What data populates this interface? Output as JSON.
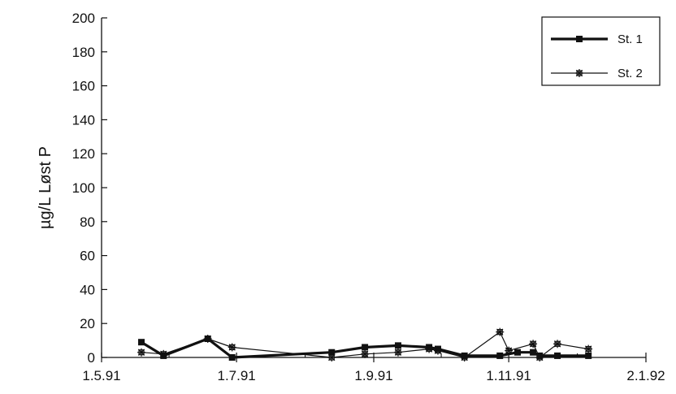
{
  "chart_data": {
    "type": "line",
    "title": "",
    "xlabel": "",
    "ylabel": "µg/L Løst P",
    "ylim": [
      0,
      200
    ],
    "yticks": [
      "0",
      "20",
      "40",
      "60",
      "80",
      "100",
      "120",
      "140",
      "160",
      "180",
      "200"
    ],
    "xlim": [
      "1991-05-01",
      "1992-01-02"
    ],
    "xticks": [
      {
        "date": "1991-05-01",
        "label": "1.5.91"
      },
      {
        "date": "1991-07-01",
        "label": "1.7.91"
      },
      {
        "date": "1991-09-01",
        "label": "1.9.91"
      },
      {
        "date": "1991-11-01",
        "label": "1.11.91"
      },
      {
        "date": "1992-01-02",
        "label": "2.1.92"
      }
    ],
    "grid": false,
    "legend": "top-right",
    "series": [
      {
        "name": "St. 1",
        "color": "#111111",
        "marker": "square",
        "points": [
          {
            "x": "1991-05-19",
            "y": 9
          },
          {
            "x": "1991-05-29",
            "y": 1
          },
          {
            "x": "1991-06-18",
            "y": 11
          },
          {
            "x": "1991-06-29",
            "y": 0
          },
          {
            "x": "1991-08-13",
            "y": 3
          },
          {
            "x": "1991-08-28",
            "y": 6
          },
          {
            "x": "1991-09-12",
            "y": 7
          },
          {
            "x": "1991-09-26",
            "y": 6
          },
          {
            "x": "1991-09-30",
            "y": 5
          },
          {
            "x": "1991-10-12",
            "y": 1
          },
          {
            "x": "1991-10-28",
            "y": 1
          },
          {
            "x": "1991-11-05",
            "y": 3
          },
          {
            "x": "1991-11-12",
            "y": 3
          },
          {
            "x": "1991-11-15",
            "y": 1
          },
          {
            "x": "1991-11-23",
            "y": 1
          },
          {
            "x": "1991-12-07",
            "y": 1
          }
        ]
      },
      {
        "name": "St. 2",
        "color": "#111111",
        "marker": "asterisk",
        "points": [
          {
            "x": "1991-05-19",
            "y": 3
          },
          {
            "x": "1991-05-29",
            "y": 2
          },
          {
            "x": "1991-06-18",
            "y": 11
          },
          {
            "x": "1991-06-29",
            "y": 6
          },
          {
            "x": "1991-08-13",
            "y": 0
          },
          {
            "x": "1991-08-28",
            "y": 2
          },
          {
            "x": "1991-09-12",
            "y": 3
          },
          {
            "x": "1991-09-26",
            "y": 5
          },
          {
            "x": "1991-09-30",
            "y": 4
          },
          {
            "x": "1991-10-12",
            "y": 0
          },
          {
            "x": "1991-10-28",
            "y": 15
          },
          {
            "x": "1991-11-01",
            "y": 4
          },
          {
            "x": "1991-11-12",
            "y": 8
          },
          {
            "x": "1991-11-15",
            "y": 0
          },
          {
            "x": "1991-11-23",
            "y": 8
          },
          {
            "x": "1991-12-07",
            "y": 5
          }
        ]
      }
    ]
  }
}
